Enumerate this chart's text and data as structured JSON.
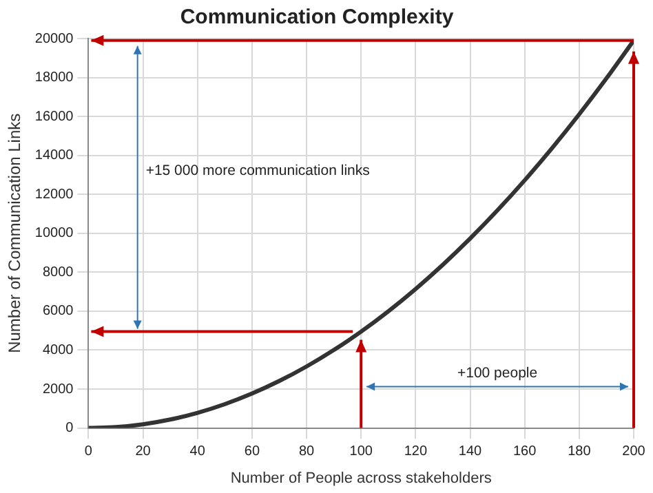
{
  "chart_data": {
    "type": "line",
    "title": "Communication Complexity",
    "xlabel": "Number of People across stakeholders",
    "ylabel": "Number of Communication Links",
    "x": [
      0,
      10,
      20,
      30,
      40,
      50,
      60,
      70,
      80,
      90,
      100,
      110,
      120,
      130,
      140,
      150,
      160,
      170,
      180,
      190,
      200
    ],
    "series": [
      {
        "color": "#333333",
        "values": [
          0,
          45,
          190,
          435,
          780,
          1225,
          1770,
          2415,
          3160,
          4005,
          4950,
          5995,
          7140,
          8385,
          9730,
          11175,
          12720,
          14365,
          16110,
          17955,
          19900
        ]
      }
    ],
    "xlim": [
      0,
      200
    ],
    "xticks": [
      0,
      20,
      40,
      60,
      80,
      100,
      120,
      140,
      160,
      180,
      200
    ],
    "ylim": [
      0,
      20000
    ],
    "yticks": [
      0,
      2000,
      4000,
      6000,
      8000,
      10000,
      12000,
      14000,
      16000,
      18000,
      20000
    ],
    "grid": true,
    "legend": false,
    "marker": "none",
    "line_style": "solid",
    "annotations": [
      "+15 000 more communication links",
      "+100 people"
    ]
  }
}
